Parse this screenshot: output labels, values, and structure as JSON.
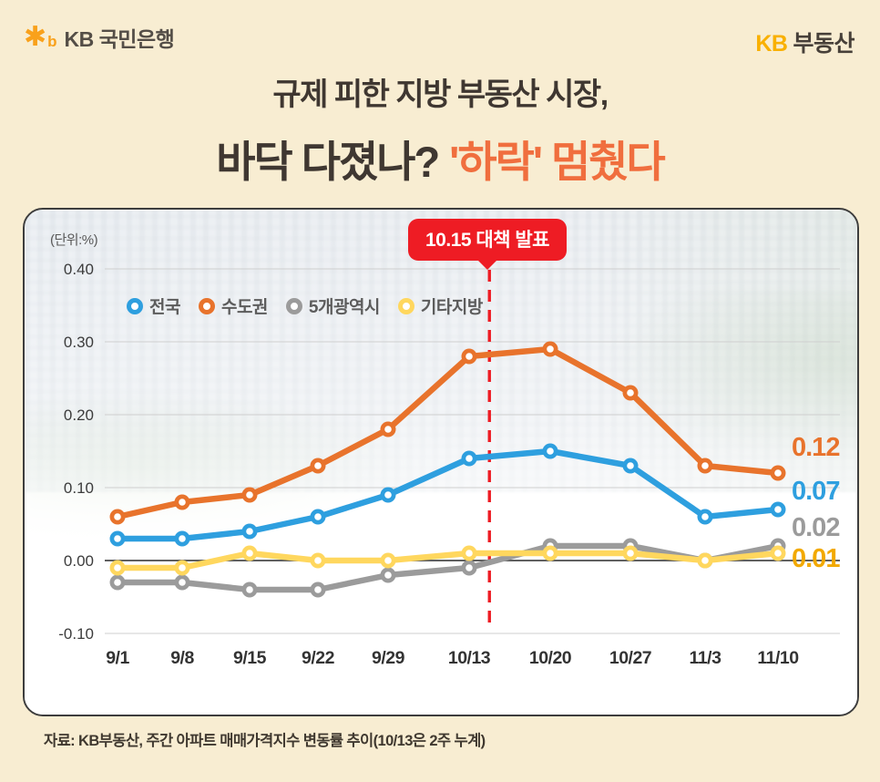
{
  "header": {
    "logo_star": "✱",
    "logo_b": "b",
    "bank_name": "KB 국민은행",
    "brand_kb": "KB",
    "brand_suffix": "부동산"
  },
  "title": {
    "line1": "규제 피한 지방 부동산 시장,",
    "line2_dark": "바닥 다졌나?",
    "line2_accent": "'하락' 멈췄다"
  },
  "chart_data": {
    "type": "line",
    "unit_label": "(단위:%)",
    "x": [
      "9/1",
      "9/8",
      "9/15",
      "9/22",
      "9/29",
      "10/13",
      "10/20",
      "10/27",
      "11/3",
      "11/10"
    ],
    "y_ticks": [
      {
        "label": "0.40",
        "value": 0.4
      },
      {
        "label": "0.30",
        "value": 0.3
      },
      {
        "label": "0.20",
        "value": 0.2
      },
      {
        "label": "0.10",
        "value": 0.1
      },
      {
        "label": "0.00",
        "value": 0.0
      },
      {
        "label": "-0.10",
        "value": -0.1
      }
    ],
    "ylim": [
      -0.1,
      0.4
    ],
    "grid": true,
    "legend_position": "top-left-inside",
    "series": [
      {
        "name": "전국",
        "color": "#2e9fdf",
        "values": [
          0.03,
          0.03,
          0.04,
          0.06,
          0.09,
          0.14,
          0.15,
          0.13,
          0.06,
          0.07
        ],
        "end_label": "0.07"
      },
      {
        "name": "수도권",
        "color": "#e8732c",
        "values": [
          0.06,
          0.08,
          0.09,
          0.13,
          0.18,
          0.28,
          0.29,
          0.23,
          0.13,
          0.12
        ],
        "end_label": "0.12"
      },
      {
        "name": "5개광역시",
        "color": "#9b9b9b",
        "values": [
          -0.03,
          -0.03,
          -0.04,
          -0.04,
          -0.02,
          -0.01,
          0.02,
          0.02,
          0.0,
          0.02
        ],
        "end_label": "0.02"
      },
      {
        "name": "기타지방",
        "color": "#ffd75e",
        "values": [
          -0.01,
          -0.01,
          0.01,
          0.0,
          0.0,
          0.01,
          0.01,
          0.01,
          0.0,
          0.01
        ],
        "end_label": "0.01",
        "end_label_color": "#f2a900"
      }
    ],
    "annotation": {
      "label": "10.15 대책 발표",
      "date": "10.15",
      "x_index": 5.25,
      "color": "#ee1c24",
      "style": "vertical-dashed-line"
    }
  },
  "footer": {
    "source": "자료: KB부동산, 주간 아파트 매매가격지수 변동률 추이(10/13은 2주 누계)"
  }
}
